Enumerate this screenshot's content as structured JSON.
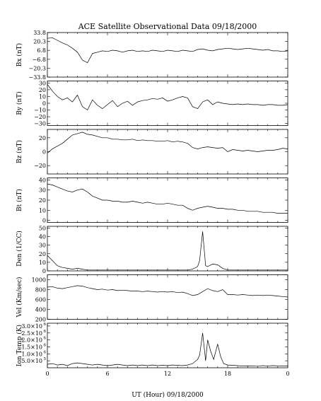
{
  "chart_data": {
    "type": "line",
    "title": "ACE Satellite Observational Data   09/18/2000",
    "xlabel": "UT (Hour)  09/18/2000",
    "x_ticks": [
      "0",
      "6",
      "12",
      "18",
      "0"
    ],
    "xlim": [
      0,
      24
    ],
    "grid": false,
    "panels": [
      {
        "ylabel": "Bx (nT)",
        "ylim": [
          -33.8,
          33.8
        ],
        "yticks": [
          -33.8,
          -20.3,
          -6.8,
          6.8,
          20.3,
          33.8
        ],
        "ytick_labels": [
          "−33.8",
          "−20.3",
          "−6.8",
          "6.8",
          "20.3",
          "33.8"
        ],
        "series": [
          {
            "x": [
              0,
              0.5,
              1,
              1.5,
              2,
              2.5,
              3,
              3.5,
              4,
              4.5,
              5,
              5.5,
              6,
              6.5,
              7,
              7.5,
              8,
              8.5,
              9,
              9.5,
              10,
              10.5,
              11,
              11.5,
              12,
              12.5,
              13,
              13.5,
              14,
              14.5,
              15,
              15.5,
              16,
              16.5,
              17,
              17.5,
              18,
              18.5,
              19,
              19.5,
              20,
              20.5,
              21,
              21.5,
              22,
              22.5,
              23,
              23.5,
              24
            ],
            "y": [
              25,
              26,
              22,
              18,
              15,
              10,
              4,
              -8,
              -12,
              2,
              4,
              6,
              5,
              7,
              6,
              4,
              6,
              7,
              5,
              6,
              5,
              7,
              6,
              5,
              7,
              6,
              5,
              7,
              6,
              5,
              8,
              9,
              7,
              6,
              8,
              9,
              10,
              9,
              8,
              9,
              10,
              9,
              8,
              7,
              8,
              6,
              6,
              5,
              6
            ]
          }
        ]
      },
      {
        "ylabel": "By (nT)",
        "ylim": [
          -33,
          33
        ],
        "yticks": [
          -30,
          -20,
          -10,
          0,
          10,
          20,
          30
        ],
        "ytick_labels": [
          "−30",
          "−20",
          "−10",
          "0",
          "10",
          "20",
          "30"
        ],
        "series": [
          {
            "x": [
              0,
              0.5,
              1,
              1.5,
              2,
              2.5,
              3,
              3.5,
              4,
              4.5,
              5,
              5.5,
              6,
              6.5,
              7,
              7.5,
              8,
              8.5,
              9,
              9.5,
              10,
              10.5,
              11,
              11.5,
              12,
              12.5,
              13,
              13.5,
              14,
              14.5,
              15,
              15.5,
              16,
              16.5,
              17,
              17.5,
              18,
              18.5,
              19,
              19.5,
              20,
              20.5,
              21,
              21.5,
              22,
              22.5,
              23,
              23.5,
              24
            ],
            "y": [
              28,
              18,
              10,
              5,
              8,
              2,
              12,
              -5,
              -10,
              5,
              -3,
              -8,
              -2,
              4,
              -5,
              0,
              3,
              -3,
              2,
              4,
              5,
              7,
              6,
              8,
              3,
              5,
              8,
              10,
              8,
              -5,
              -8,
              2,
              5,
              -2,
              2,
              0,
              -1,
              -2,
              -1,
              -2,
              -1,
              -2,
              -2,
              -3,
              -2,
              -2,
              -3,
              -3,
              -2
            ]
          }
        ]
      },
      {
        "ylabel": "Bz (nT)",
        "ylim": [
          -32,
          32
        ],
        "yticks": [
          -20,
          0,
          20
        ],
        "ytick_labels": [
          "−20",
          "0",
          "20"
        ],
        "series": [
          {
            "x": [
              0,
              0.5,
              1,
              1.5,
              2,
              2.5,
              3,
              3.5,
              4,
              4.5,
              5,
              5.5,
              6,
              6.5,
              7,
              7.5,
              8,
              8.5,
              9,
              9.5,
              10,
              10.5,
              11,
              11.5,
              12,
              12.5,
              13,
              13.5,
              14,
              14.5,
              15,
              15.5,
              16,
              16.5,
              17,
              17.5,
              18,
              18.5,
              19,
              19.5,
              20,
              20.5,
              21,
              21.5,
              22,
              22.5,
              23,
              23.5,
              24
            ],
            "y": [
              -2,
              4,
              8,
              12,
              18,
              24,
              26,
              28,
              25,
              24,
              22,
              20,
              20,
              18,
              18,
              17,
              17,
              18,
              16,
              17,
              16,
              16,
              15,
              15,
              16,
              14,
              15,
              14,
              12,
              6,
              4,
              6,
              7,
              6,
              5,
              6,
              0,
              3,
              2,
              1,
              2,
              1,
              0,
              1,
              2,
              2,
              3,
              5,
              4
            ]
          }
        ]
      },
      {
        "ylabel": "Bt (nT)",
        "ylim": [
          -2,
          42
        ],
        "yticks": [
          0,
          10,
          20,
          30,
          40
        ],
        "ytick_labels": [
          "0",
          "10",
          "20",
          "30",
          "40"
        ],
        "series": [
          {
            "x": [
              0,
              0.5,
              1,
              1.5,
              2,
              2.5,
              3,
              3.5,
              4,
              4.5,
              5,
              5.5,
              6,
              6.5,
              7,
              7.5,
              8,
              8.5,
              9,
              9.5,
              10,
              10.5,
              11,
              11.5,
              12,
              12.5,
              13,
              13.5,
              14,
              14.5,
              15,
              15.5,
              16,
              16.5,
              17,
              17.5,
              18,
              18.5,
              19,
              19.5,
              20,
              20.5,
              21,
              21.5,
              22,
              22.5,
              23,
              23.5,
              24
            ],
            "y": [
              36,
              35,
              33,
              31,
              29,
              28,
              30,
              31,
              28,
              24,
              22,
              20,
              20,
              19,
              19,
              18,
              18,
              19,
              18,
              17,
              18,
              17,
              16,
              16,
              17,
              16,
              15,
              15,
              12,
              10,
              12,
              13,
              14,
              13,
              12,
              12,
              11,
              11,
              10,
              10,
              9,
              9,
              9,
              8,
              8,
              8,
              7,
              7,
              7
            ]
          }
        ]
      },
      {
        "ylabel": "Den (1/CC)",
        "ylim": [
          0,
          52
        ],
        "yticks": [
          0,
          10,
          20,
          30,
          40,
          50
        ],
        "ytick_labels": [
          "0",
          "10",
          "20",
          "30",
          "40",
          "50"
        ],
        "series": [
          {
            "x": [
              0,
              0.5,
              1,
              1.5,
              2,
              2.5,
              3,
              3.5,
              4,
              4.5,
              5,
              5.5,
              6,
              6.5,
              7,
              7.5,
              8,
              8.5,
              9,
              9.5,
              10,
              10.5,
              11,
              11.5,
              12,
              12.5,
              13,
              13.5,
              14,
              14.5,
              15,
              15.2,
              15.5,
              15.8,
              16,
              16.5,
              17,
              17.5,
              18,
              18.5,
              19,
              19.5,
              20,
              20.5,
              21,
              21.5,
              22,
              22.5,
              23,
              23.5,
              24
            ],
            "y": [
              18,
              12,
              6,
              4,
              3,
              2,
              3,
              2,
              1,
              1,
              1,
              1,
              1,
              1,
              1,
              1,
              1,
              1,
              1,
              1,
              1,
              1,
              1,
              1,
              1,
              1,
              1,
              1,
              1,
              2,
              5,
              12,
              46,
              6,
              5,
              8,
              7,
              3,
              1,
              1,
              1,
              1,
              1,
              1,
              1,
              1,
              1,
              1,
              1,
              1,
              1
            ]
          }
        ]
      },
      {
        "ylabel": "Vel (Km/sec)",
        "ylim": [
          200,
          1100
        ],
        "yticks": [
          200,
          400,
          600,
          800,
          1000
        ],
        "ytick_labels": [
          "200",
          "400",
          "600",
          "800",
          "1000"
        ],
        "series": [
          {
            "x": [
              0,
              0.5,
              1,
              1.5,
              2,
              2.5,
              3,
              3.5,
              4,
              4.5,
              5,
              5.5,
              6,
              6.5,
              7,
              7.5,
              8,
              8.5,
              9,
              9.5,
              10,
              10.5,
              11,
              11.5,
              12,
              12.5,
              13,
              13.5,
              14,
              14.5,
              15,
              15.5,
              16,
              16.5,
              17,
              17.5,
              18,
              18.5,
              19,
              19.5,
              20,
              20.5,
              21,
              21.5,
              22,
              22.5,
              23,
              23.5,
              24
            ],
            "y": [
              850,
              860,
              830,
              820,
              840,
              860,
              880,
              870,
              840,
              820,
              800,
              810,
              790,
              800,
              780,
              790,
              780,
              770,
              770,
              760,
              770,
              760,
              750,
              760,
              750,
              760,
              740,
              750,
              720,
              680,
              700,
              760,
              820,
              780,
              760,
              800,
              700,
              700,
              690,
              700,
              690,
              680,
              690,
              680,
              690,
              680,
              670,
              660,
              650
            ]
          }
        ]
      },
      {
        "ylabel": "Ion Temp (K)",
        "ylim": [
          0,
          3200000
        ],
        "yticks": [
          500000,
          1000000,
          1500000,
          2000000,
          2500000,
          3000000
        ],
        "ytick_labels": [
          "5.0×10",
          "1.0×10",
          "1.5×10",
          "2.0×10",
          "2.5×10",
          "3.0×10"
        ],
        "ytick_exponents": [
          "5",
          "6",
          "6",
          "6",
          "6",
          "6"
        ],
        "series": [
          {
            "x": [
              0,
              0.5,
              1,
              1.5,
              2,
              2.5,
              3,
              3.5,
              4,
              4.5,
              5,
              5.5,
              6,
              6.5,
              7,
              7.5,
              8,
              8.5,
              9,
              9.5,
              10,
              10.5,
              11,
              11.5,
              12,
              12.5,
              13,
              13.5,
              14,
              14.5,
              15,
              15.2,
              15.5,
              15.8,
              16,
              16.3,
              16.6,
              17,
              17.3,
              17.6,
              18,
              18.5,
              19,
              19.5,
              20,
              20.5,
              21,
              21.5,
              22,
              22.5,
              23,
              23.5,
              24
            ],
            "y": [
              250000,
              300000,
              200000,
              250000,
              150000,
              300000,
              350000,
              300000,
              250000,
              200000,
              250000,
              200000,
              150000,
              200000,
              250000,
              200000,
              150000,
              200000,
              150000,
              200000,
              150000,
              200000,
              150000,
              180000,
              150000,
              200000,
              180000,
              150000,
              200000,
              300000,
              600000,
              900000,
              2500000,
              500000,
              2000000,
              1200000,
              600000,
              1700000,
              800000,
              300000,
              200000,
              180000,
              150000,
              120000,
              130000,
              120000,
              110000,
              150000,
              120000,
              150000,
              130000,
              120000,
              120000
            ]
          }
        ]
      }
    ]
  }
}
